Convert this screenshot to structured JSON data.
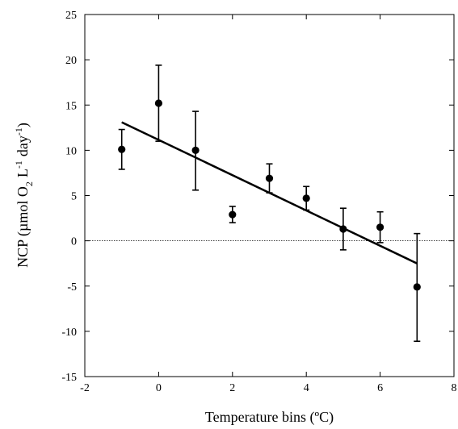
{
  "chart_data": {
    "type": "scatter",
    "title": "",
    "xlabel": "Temperature bins (ºC)",
    "ylabel": "NCP (µmol O₂ L⁻¹ day⁻¹)",
    "ylabel_parts": {
      "prefix": "NCP (µmol O",
      "o2_sub": "2",
      "l": "L",
      "l_sup": "-1",
      "day": "day",
      "day_sup": "-1",
      "suffix": ")"
    },
    "xlim": [
      -2,
      8
    ],
    "ylim": [
      -15,
      25
    ],
    "x_ticks": [
      -2,
      0,
      2,
      4,
      6,
      8
    ],
    "y_ticks": [
      -15,
      -10,
      -5,
      0,
      5,
      10,
      15,
      20,
      25
    ],
    "grid": false,
    "legend": "none",
    "series": [
      {
        "points": [
          {
            "x": -1,
            "y": 10.1,
            "err_hi": 12.3,
            "err_lo": 7.9
          },
          {
            "x": 0,
            "y": 15.2,
            "err_hi": 19.4,
            "err_lo": 11.0
          },
          {
            "x": 1,
            "y": 10.0,
            "err_hi": 14.3,
            "err_lo": 5.6
          },
          {
            "x": 2,
            "y": 2.9,
            "err_hi": 3.8,
            "err_lo": 2.0
          },
          {
            "x": 3,
            "y": 6.9,
            "err_hi": 8.5,
            "err_lo": 5.3
          },
          {
            "x": 4,
            "y": 4.7,
            "err_hi": 6.0,
            "err_lo": 3.4
          },
          {
            "x": 5,
            "y": 1.3,
            "err_hi": 3.6,
            "err_lo": -1.0
          },
          {
            "x": 6,
            "y": 1.5,
            "err_hi": 3.2,
            "err_lo": -0.2
          },
          {
            "x": 7,
            "y": -5.1,
            "err_hi": 0.8,
            "err_lo": -11.1
          }
        ]
      }
    ],
    "fit_line": {
      "x": [
        -1,
        7
      ],
      "y": [
        13.1,
        -2.5
      ]
    },
    "reference_line": {
      "y": 0,
      "style": "dotted"
    },
    "colors": {
      "markers": "#000000",
      "line": "#000000",
      "axes": "#000000"
    }
  }
}
